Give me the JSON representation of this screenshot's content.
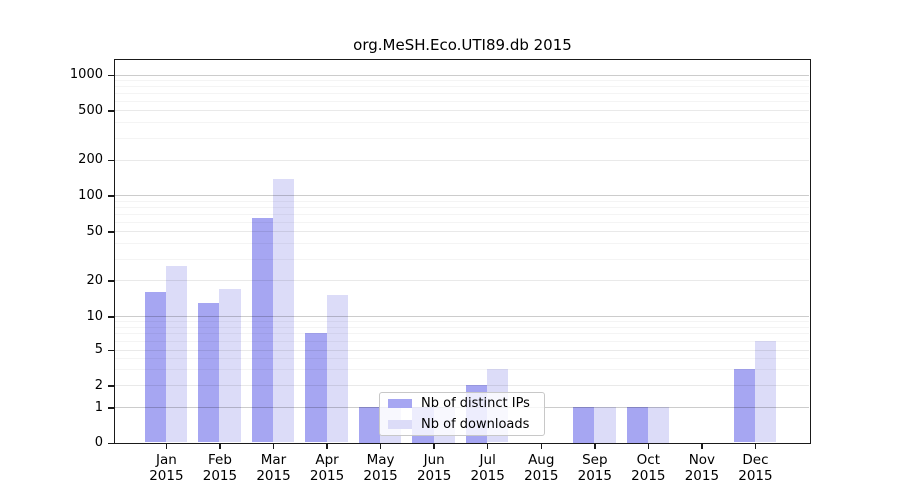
{
  "title": "org.MeSH.Eco.UTI89.db 2015",
  "legend": {
    "items": [
      {
        "label": "Nb of distinct IPs",
        "color": "#a6a6f2"
      },
      {
        "label": "Nb of downloads",
        "color": "#dcdcf8"
      }
    ]
  },
  "chart_data": {
    "type": "bar",
    "title": "org.MeSH.Eco.UTI89.db 2015",
    "categories": [
      "Jan 2015",
      "Feb 2015",
      "Mar 2015",
      "Apr 2015",
      "May 2015",
      "Jun 2015",
      "Jul 2015",
      "Aug 2015",
      "Sep 2015",
      "Oct 2015",
      "Nov 2015",
      "Dec 2015"
    ],
    "series": [
      {
        "name": "Nb of distinct IPs",
        "color": "#a6a6f2",
        "values": [
          16,
          13,
          65,
          7,
          1,
          1,
          2,
          0,
          1,
          1,
          0,
          3
        ]
      },
      {
        "name": "Nb of downloads",
        "color": "#dcdcf8",
        "values": [
          26,
          17,
          138,
          15,
          1,
          1,
          3,
          0,
          1,
          1,
          0,
          6
        ]
      }
    ],
    "yticks": [
      0,
      1,
      2,
      5,
      10,
      20,
      50,
      100,
      200,
      500,
      1000
    ],
    "y_minor_ticks": [
      3,
      4,
      6,
      7,
      8,
      9,
      30,
      40,
      60,
      70,
      80,
      90,
      300,
      400,
      600,
      700,
      800,
      900
    ],
    "yscale": "log (linear segment between 0 and 1)",
    "ylim": [
      0,
      1300
    ],
    "grid": true,
    "legend_position": "inside plot, lower left-of-center (covers May-Jun bars)",
    "bars_per_group": 2,
    "note_hidden_bars": "May downloads and both Jun bars are partially hidden behind the legend"
  }
}
